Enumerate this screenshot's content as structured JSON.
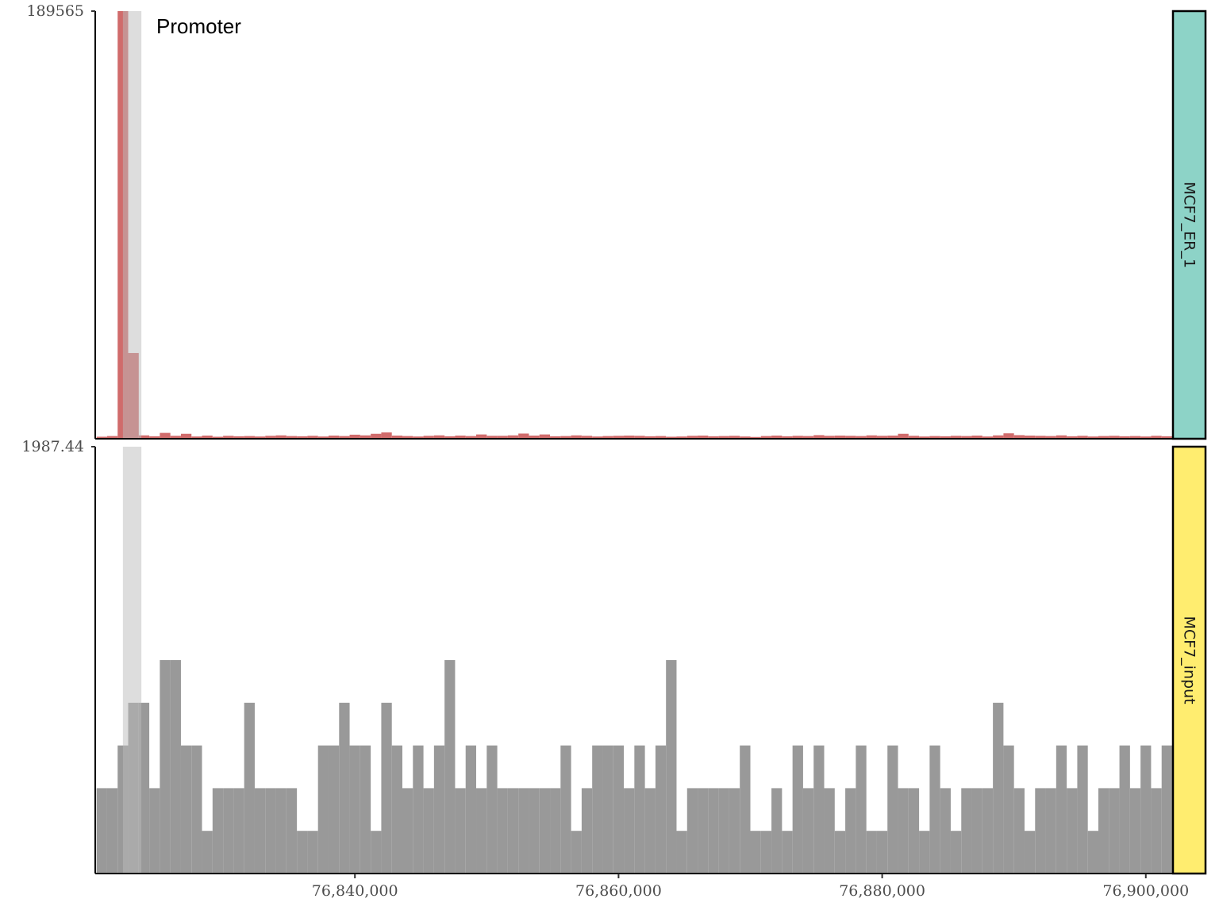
{
  "chart_data": {
    "type": "histogram",
    "bins": [
      76820400,
      76821200,
      76822000,
      76822800,
      76823600,
      76824400,
      76825200,
      76826000,
      76826800,
      76827600,
      76828400,
      76829200,
      76830000,
      76830800,
      76831600,
      76832400,
      76833200,
      76834000,
      76834800,
      76835600,
      76836400,
      76837200,
      76838000,
      76838800,
      76839600,
      76840400,
      76841200,
      76842000,
      76842800,
      76843600,
      76844400,
      76845200,
      76846000,
      76846800,
      76847600,
      76848400,
      76849200,
      76850000,
      76850800,
      76851600,
      76852400,
      76853200,
      76854000,
      76854800,
      76855600,
      76856400,
      76857200,
      76858000,
      76858800,
      76859600,
      76860400,
      76861200,
      76862000,
      76862800,
      76863600,
      76864400,
      76865200,
      76866000,
      76866800,
      76867600,
      76868400,
      76869200,
      76870000,
      76870800,
      76871600,
      76872400,
      76873200,
      76874000,
      76874800,
      76875600,
      76876400,
      76877200,
      76878000,
      76878800,
      76879600,
      76880400,
      76881200,
      76882000,
      76882800,
      76883600,
      76884400,
      76885200,
      76886000,
      76886800,
      76887600,
      76888400,
      76889200,
      76890000,
      76890800,
      76891600,
      76892400,
      76893200,
      76894000,
      76894800,
      76895600,
      76896400,
      76897200,
      76898000,
      76898800,
      76899600,
      76900400,
      76901200,
      76902000
    ],
    "xlim": [
      76820300,
      76902000
    ],
    "xticks": [
      {
        "value": 76840000,
        "label": "76,840,000"
      },
      {
        "value": 76860000,
        "label": "76,860,000"
      },
      {
        "value": 76880000,
        "label": "76,880,000"
      },
      {
        "value": 76900000,
        "label": "76,900,000"
      }
    ],
    "annotations": [
      {
        "label": "Promoter",
        "xmin": 76822400,
        "xmax": 76823800
      }
    ],
    "series": [
      {
        "name": "MCF7_ER_1",
        "color": "#d06b6b",
        "strip_color": "#8dd3c7",
        "ylim": [
          0,
          189565
        ],
        "yticks": [
          189565
        ],
        "values": [
          900,
          1200,
          189565,
          38000,
          1500,
          1100,
          2600,
          1300,
          2200,
          1000,
          1400,
          900,
          1300,
          1100,
          1200,
          1000,
          1300,
          1500,
          1200,
          1100,
          1300,
          1000,
          1400,
          1200,
          1800,
          1500,
          2200,
          2800,
          1400,
          1200,
          1000,
          1300,
          1500,
          1100,
          1400,
          1200,
          1900,
          1300,
          1300,
          1500,
          2300,
          1400,
          1900,
          1100,
          1200,
          1500,
          1300,
          1000,
          1200,
          1300,
          1400,
          1300,
          1100,
          1200,
          900,
          1000,
          1300,
          1400,
          1100,
          1200,
          1300,
          1000,
          800,
          1200,
          1400,
          1100,
          1300,
          1200,
          1600,
          1300,
          1400,
          1300,
          1200,
          1500,
          1300,
          1400,
          2200,
          1300,
          1000,
          1200,
          1100,
          1300,
          1200,
          1400,
          1000,
          1500,
          2400,
          1600,
          1400,
          1300,
          1200,
          1500,
          1100,
          1300,
          1000,
          1200,
          1300,
          1100,
          1200,
          1000,
          1300,
          1100
        ]
      },
      {
        "name": "MCF7_input",
        "color": "#999999",
        "strip_color": "#ffed6f",
        "ylim": [
          0,
          1987.44
        ],
        "yticks": [
          1987.44
        ],
        "values": [
          397.49,
          397.49,
          596.23,
          794.98,
          794.98,
          397.49,
          993.72,
          993.72,
          596.23,
          596.23,
          198.74,
          397.49,
          397.49,
          397.49,
          794.98,
          397.49,
          397.49,
          397.49,
          397.49,
          198.74,
          198.74,
          596.23,
          596.23,
          794.98,
          596.23,
          596.23,
          198.74,
          794.98,
          596.23,
          397.49,
          596.23,
          397.49,
          596.23,
          993.72,
          397.49,
          596.23,
          397.49,
          596.23,
          397.49,
          397.49,
          397.49,
          397.49,
          397.49,
          397.49,
          596.23,
          198.74,
          397.49,
          596.23,
          596.23,
          596.23,
          397.49,
          596.23,
          397.49,
          596.23,
          993.72,
          198.74,
          397.49,
          397.49,
          397.49,
          397.49,
          397.49,
          596.23,
          198.74,
          198.74,
          397.49,
          198.74,
          596.23,
          397.49,
          596.23,
          397.49,
          198.74,
          397.49,
          596.23,
          198.74,
          198.74,
          596.23,
          397.49,
          397.49,
          198.74,
          596.23,
          397.49,
          198.74,
          397.49,
          397.49,
          397.49,
          794.98,
          596.23,
          397.49,
          198.74,
          397.49,
          397.49,
          596.23,
          397.49,
          596.23,
          198.74,
          397.49,
          397.49,
          596.23,
          397.49,
          596.23,
          397.49,
          596.23
        ]
      }
    ]
  }
}
